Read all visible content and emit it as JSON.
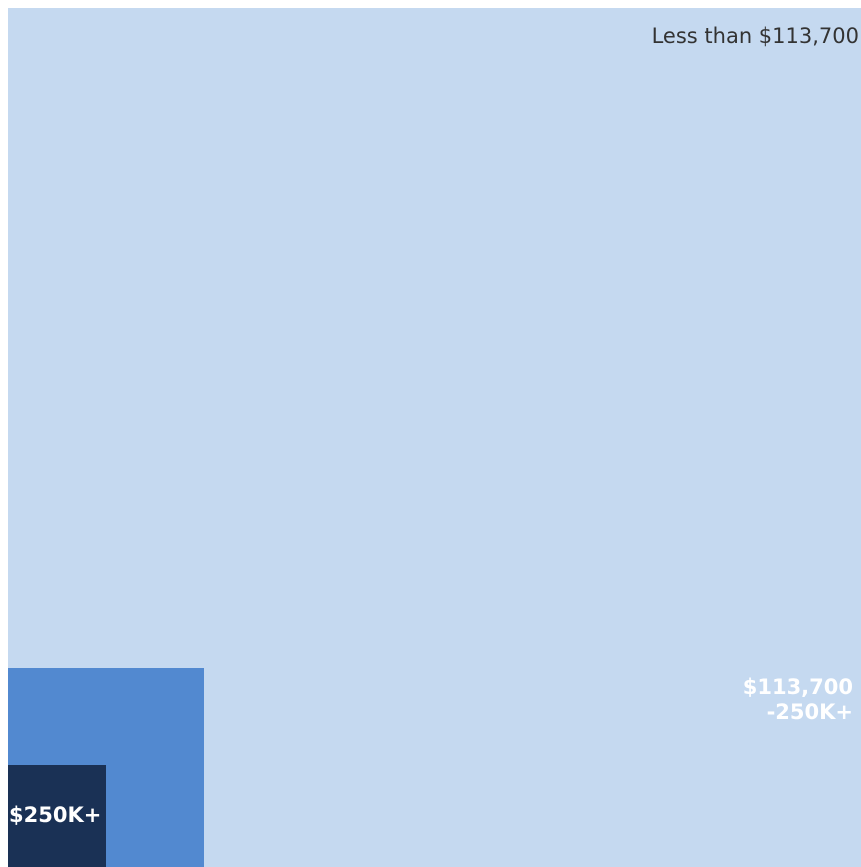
{
  "chart_data": {
    "type": "nested-area",
    "title": "",
    "categories": [
      "Less than $113,700",
      "$113,700 -250K+",
      "$250K+"
    ],
    "label_lines": [
      [
        "Less than $113,700"
      ],
      [
        "$113,700",
        "-250K+"
      ],
      [
        "$250K+"
      ]
    ],
    "relative_area": [
      1.0,
      0.053,
      0.0137
    ],
    "colors": [
      "#c5d9f0",
      "#5289d0",
      "#1a3155"
    ]
  }
}
